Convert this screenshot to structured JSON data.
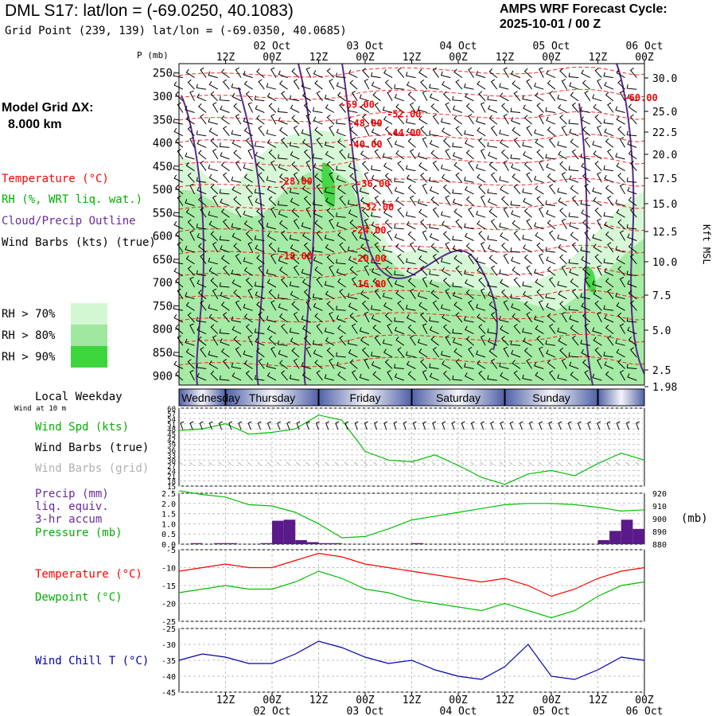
{
  "header": {
    "title": "DML S17:  lat/lon = (-69.0250, 40.1083)",
    "subtitle": "Grid Point (239, 139) lat/lon = (-69.0350, 40.0685)",
    "cycle_line1": "AMPS WRF Forecast Cycle:",
    "cycle_line2": "2025-10-01 / 00  Z",
    "grid_label": "Model Grid ΔX:",
    "grid_value": "8.000 km"
  },
  "legend": {
    "temperature": "Temperature (°C)",
    "rh": "RH (%, WRT liq. wat.)",
    "cloud": "Cloud/Precip Outline",
    "wind": "Wind Barbs (kts) (true)",
    "rh70": "RH > 70%",
    "rh80": "RH > 80%",
    "rh90": "RH > 90%",
    "rh_colors": [
      "#d3f7d3",
      "#a0e8a0",
      "#3cd63c"
    ]
  },
  "axes": {
    "p_label": "P (mb)",
    "kft_label": "Kft MSL",
    "top_dates": [
      "02 Oct",
      "03 Oct",
      "04 Oct",
      "05 Oct",
      "06 Oct"
    ],
    "hour_labels": [
      "12Z",
      "00Z",
      "12Z",
      "00Z",
      "12Z",
      "00Z",
      "12Z",
      "00Z",
      "12Z",
      "00Z"
    ],
    "weekdays": [
      "Wednesday",
      "Thursday",
      "Friday",
      "Saturday",
      "Sunday"
    ],
    "local_weekday": "Local Weekday",
    "wind_at_10m": "Wind at 10 m"
  },
  "colors": {
    "temperature": "#ff0000",
    "rh": "#00c000",
    "cloud": "#5a2a8a",
    "pressure": "#00c000",
    "precip": "#5a1a8a",
    "windchill": "#0000b0"
  },
  "chart_data": [
    {
      "type": "heatmap",
      "title": "Time-height cross section",
      "ylabel": "P (mb)",
      "y2label": "Kft MSL",
      "yticks": [
        250,
        300,
        350,
        400,
        450,
        500,
        550,
        600,
        650,
        700,
        750,
        800,
        850,
        900
      ],
      "y2ticks": [
        "30.0",
        "25.0",
        "22.5",
        "20.0",
        "17.5",
        "15.0",
        "12.5",
        "10.0",
        "7.5",
        "5.0",
        "2.5",
        "1.98"
      ],
      "ylim": [
        230,
        920
      ],
      "temperature_labels": [
        {
          "label": "-60.00",
          "hour": 119,
          "p": 310
        },
        {
          "label": "-59.00",
          "hour": 46,
          "p": 325
        },
        {
          "label": "-52.00",
          "hour": 58,
          "p": 345
        },
        {
          "label": "-48.00",
          "hour": 48,
          "p": 365
        },
        {
          "label": "-44.00",
          "hour": 58,
          "p": 385
        },
        {
          "label": "-40.00",
          "hour": 48,
          "p": 410
        },
        {
          "label": "-28.00",
          "hour": 30,
          "p": 490
        },
        {
          "label": "-36.00",
          "hour": 50,
          "p": 495
        },
        {
          "label": "-32.00",
          "hour": 51,
          "p": 545
        },
        {
          "label": "-24.00",
          "hour": 49,
          "p": 595
        },
        {
          "label": "-18.00",
          "hour": 30,
          "p": 650
        },
        {
          "label": "-20.00",
          "hour": 49,
          "p": 655
        },
        {
          "label": "-16.00",
          "hour": 49,
          "p": 710
        }
      ]
    },
    {
      "type": "line",
      "title": "Wind Spd (kts)",
      "series_labels": [
        "Wind Spd (kts)",
        "Wind Barbs (true)",
        "Wind Barbs (grid)"
      ],
      "yticks": [
        15,
        18,
        21,
        24,
        27,
        30,
        33,
        36,
        39,
        42,
        45,
        48,
        51,
        54,
        57,
        60
      ],
      "ylim": [
        15,
        60
      ],
      "x": [
        0,
        6,
        12,
        18,
        24,
        30,
        36,
        42,
        48,
        54,
        60,
        66,
        72,
        78,
        84,
        90,
        96,
        102,
        108,
        114,
        120
      ],
      "values": [
        47,
        48,
        51,
        45,
        46,
        48,
        56,
        53,
        35,
        30,
        29,
        33,
        27,
        20,
        16,
        22,
        24,
        21,
        28,
        34,
        30
      ]
    },
    {
      "type": "bar",
      "title": "Precip (mm)",
      "series_labels": [
        "Precip (mm)",
        "liq. equiv.",
        "3-hr accum",
        "Pressure (mb)"
      ],
      "yticks": [
        "0.0",
        "0.5",
        "1.0",
        "1.5",
        "2.0",
        "2.5"
      ],
      "ylim": [
        0,
        2.5
      ],
      "y2ticks": [
        880,
        890,
        900,
        910,
        920
      ],
      "y2lim": [
        880,
        920
      ],
      "y2label": "(mb)",
      "precip_x": [
        3,
        6,
        9,
        12,
        15,
        18,
        21,
        24,
        27,
        30,
        33,
        36,
        39,
        42,
        45,
        48,
        51,
        54,
        57,
        60,
        63,
        66,
        69,
        72,
        75,
        78,
        81,
        84,
        87,
        90,
        93,
        96,
        99,
        102,
        105,
        108,
        111,
        114,
        117,
        120
      ],
      "precip_values": [
        0,
        0.05,
        0,
        0.05,
        0.05,
        0,
        0,
        0.05,
        1.15,
        1.2,
        0.2,
        0.1,
        0.05,
        0.05,
        0,
        0,
        0,
        0,
        0,
        0,
        0.05,
        0,
        0,
        0,
        0,
        0,
        0,
        0,
        0,
        0,
        0,
        0,
        0,
        0,
        0,
        0,
        0.2,
        0.65,
        1.2,
        0.75
      ],
      "pressure_x": [
        0,
        6,
        12,
        18,
        24,
        30,
        36,
        42,
        48,
        54,
        60,
        66,
        72,
        78,
        84,
        90,
        96,
        102,
        108,
        114,
        120
      ],
      "pressure_values": [
        922,
        919,
        917,
        911,
        910,
        905,
        896,
        885,
        886,
        892,
        899,
        902,
        905,
        908,
        911,
        912,
        912,
        911,
        909,
        906,
        907
      ]
    },
    {
      "type": "line",
      "series_labels": [
        "Temperature (°C)",
        "Dewpoint (°C)"
      ],
      "yticks": [
        -5,
        -10,
        -15,
        -20,
        -25
      ],
      "ylim": [
        -25,
        -5
      ],
      "x": [
        0,
        6,
        12,
        18,
        24,
        30,
        36,
        42,
        48,
        54,
        60,
        66,
        72,
        78,
        84,
        90,
        96,
        102,
        108,
        114,
        120
      ],
      "series": [
        {
          "name": "Temperature (°C)",
          "values": [
            -11,
            -10,
            -9,
            -10,
            -10,
            -8,
            -6,
            -7,
            -9,
            -10,
            -11,
            -12,
            -13,
            -14,
            -13,
            -15,
            -18,
            -16,
            -13,
            -11,
            -10
          ]
        },
        {
          "name": "Dewpoint (°C)",
          "values": [
            -17,
            -16,
            -15,
            -16,
            -16,
            -14,
            -11,
            -13,
            -16,
            -17,
            -19,
            -20,
            -21,
            -22,
            -20,
            -22,
            -24,
            -22,
            -18,
            -15,
            -14
          ]
        }
      ]
    },
    {
      "type": "line",
      "series_labels": [
        "Wind Chill T (°C)"
      ],
      "yticks": [
        -25,
        -30,
        -35,
        -40,
        -45
      ],
      "ylim": [
        -45,
        -25
      ],
      "x": [
        0,
        6,
        12,
        18,
        24,
        30,
        36,
        42,
        48,
        54,
        60,
        66,
        72,
        78,
        84,
        90,
        96,
        102,
        108,
        114,
        120
      ],
      "values": [
        -35,
        -33,
        -34,
        -36,
        -36,
        -33,
        -29,
        -31,
        -34,
        -36,
        -35,
        -38,
        -40,
        -41,
        -37,
        -30,
        -40,
        -41,
        -38,
        -34,
        -35
      ]
    }
  ]
}
